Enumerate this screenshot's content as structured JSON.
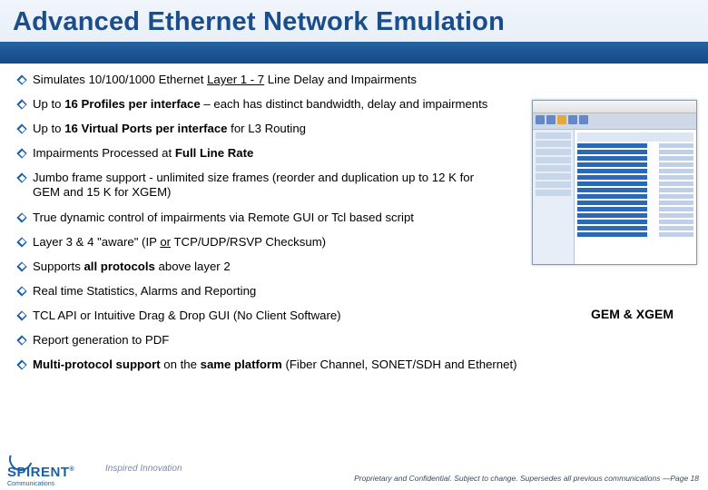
{
  "title": "Advanced Ethernet Network Emulation",
  "bullets": [
    {
      "html": "Simulates 10/100/1000 Ethernet <u>Layer 1 - 7</u> Line Delay and Impairments",
      "narrow": false
    },
    {
      "html": "Up to <b>16 Profiles per interface</b> – each has distinct bandwidth, delay and impairments",
      "narrow": false
    },
    {
      "html": "Up to <b>16 Virtual Ports per interface</b> for L3 Routing",
      "narrow": false
    },
    {
      "html": "Impairments Processed at <b>Full Line Rate</b>",
      "narrow": true
    },
    {
      "html": "Jumbo frame support - unlimited size frames (reorder and duplication up to 12 K for GEM and 15 K for XGEM)",
      "narrow": true
    },
    {
      "html": "True dynamic control of impairments via Remote GUI or Tcl based script",
      "narrow": true
    },
    {
      "html": "Layer 3 &amp; 4 \"aware\" (IP <u>or</u> TCP/UDP/RSVP Checksum)",
      "narrow": true
    },
    {
      "html": "Supports <b>all protocols</b> above layer 2",
      "narrow": true
    },
    {
      "html": "Real time Statistics, Alarms and Reporting",
      "narrow": false
    },
    {
      "html": "TCL API or Intuitive Drag &amp; Drop GUI (No Client Software)",
      "narrow": false
    },
    {
      "html": "Report generation to PDF",
      "narrow": false
    },
    {
      "html": "<b>Multi-protocol support</b> on the <b>same platform</b> (Fiber Channel, SONET/SDH and Ethernet)",
      "narrow": false
    }
  ],
  "screenshot_caption": "GEM & XGEM",
  "logo": {
    "brand": "SPIRENT",
    "sub": "Communications",
    "reg": "®"
  },
  "tagline": "Inspired Innovation",
  "footer_note": "Proprietary and Confidential.  Subject to change.  Supersedes all previous communications —Page 18",
  "colors": {
    "accent": "#1a5fa8",
    "title_text": "#1a4d8a",
    "gradient_top": "#6ba4d8",
    "gradient_bottom": "#154a88"
  }
}
